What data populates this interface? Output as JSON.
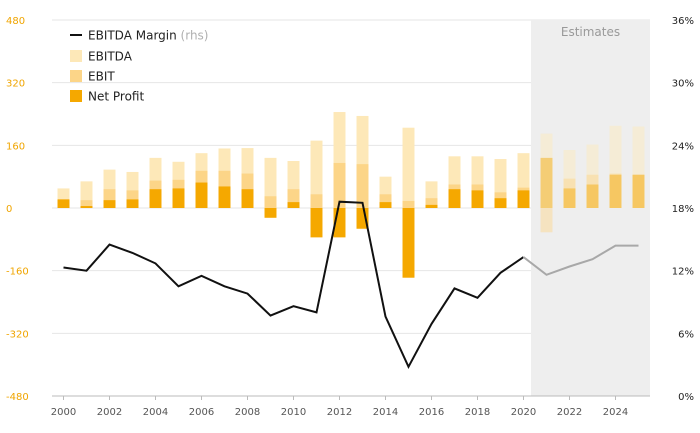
{
  "chart_data": {
    "type": "bar",
    "x": [
      2000,
      2001,
      2002,
      2003,
      2004,
      2005,
      2006,
      2007,
      2008,
      2009,
      2010,
      2011,
      2012,
      2013,
      2014,
      2015,
      2016,
      2017,
      2018,
      2019,
      2020,
      2021,
      2022,
      2023,
      2024,
      2025
    ],
    "left_axis": {
      "ylim": [
        -480,
        480
      ],
      "ticks": [
        480,
        320,
        160,
        0,
        -160,
        -320,
        -480
      ],
      "color": "#f0a500"
    },
    "right_axis": {
      "ylim": [
        0,
        36
      ],
      "ticks": [
        36,
        30,
        24,
        18,
        12,
        6,
        0
      ],
      "unit": "%"
    },
    "x_ticks": [
      2000,
      2002,
      2004,
      2006,
      2008,
      2010,
      2012,
      2014,
      2016,
      2018,
      2020,
      2022,
      2024
    ],
    "series": [
      {
        "name": "EBITDA",
        "color": "#fde8b8",
        "values": [
          50,
          68,
          98,
          92,
          128,
          118,
          140,
          152,
          153,
          128,
          120,
          172,
          245,
          235,
          80,
          205,
          68,
          132,
          132,
          125,
          140,
          190,
          148,
          162,
          210,
          208
        ]
      },
      {
        "name": "EBIT",
        "color": "#fcd588",
        "values": [
          22,
          20,
          48,
          45,
          70,
          72,
          95,
          95,
          88,
          30,
          48,
          35,
          115,
          112,
          35,
          18,
          25,
          60,
          60,
          40,
          52,
          -62,
          75,
          85,
          88,
          85
        ]
      },
      {
        "name": "Net Profit",
        "color": "#f5a800",
        "values": [
          22,
          5,
          20,
          22,
          48,
          50,
          65,
          55,
          48,
          -25,
          15,
          -75,
          -75,
          -53,
          15,
          -178,
          8,
          48,
          45,
          25,
          45,
          128,
          50,
          60,
          85,
          85
        ]
      },
      {
        "name": "EBITDA Margin",
        "name_suffix": "(rhs)",
        "color": "#111111",
        "values": [
          12.3,
          12.0,
          14.5,
          13.7,
          12.7,
          10.5,
          11.5,
          10.5,
          9.8,
          7.7,
          8.6,
          8.0,
          18.6,
          18.5,
          7.6,
          2.8,
          6.9,
          10.3,
          9.4,
          11.8,
          13.3,
          11.6,
          12.4,
          13.1,
          14.4,
          14.4
        ]
      }
    ],
    "estimates": {
      "label": "Estimates",
      "from_year": 2021
    },
    "legend_position": "top-left",
    "grid": "horizontal"
  }
}
